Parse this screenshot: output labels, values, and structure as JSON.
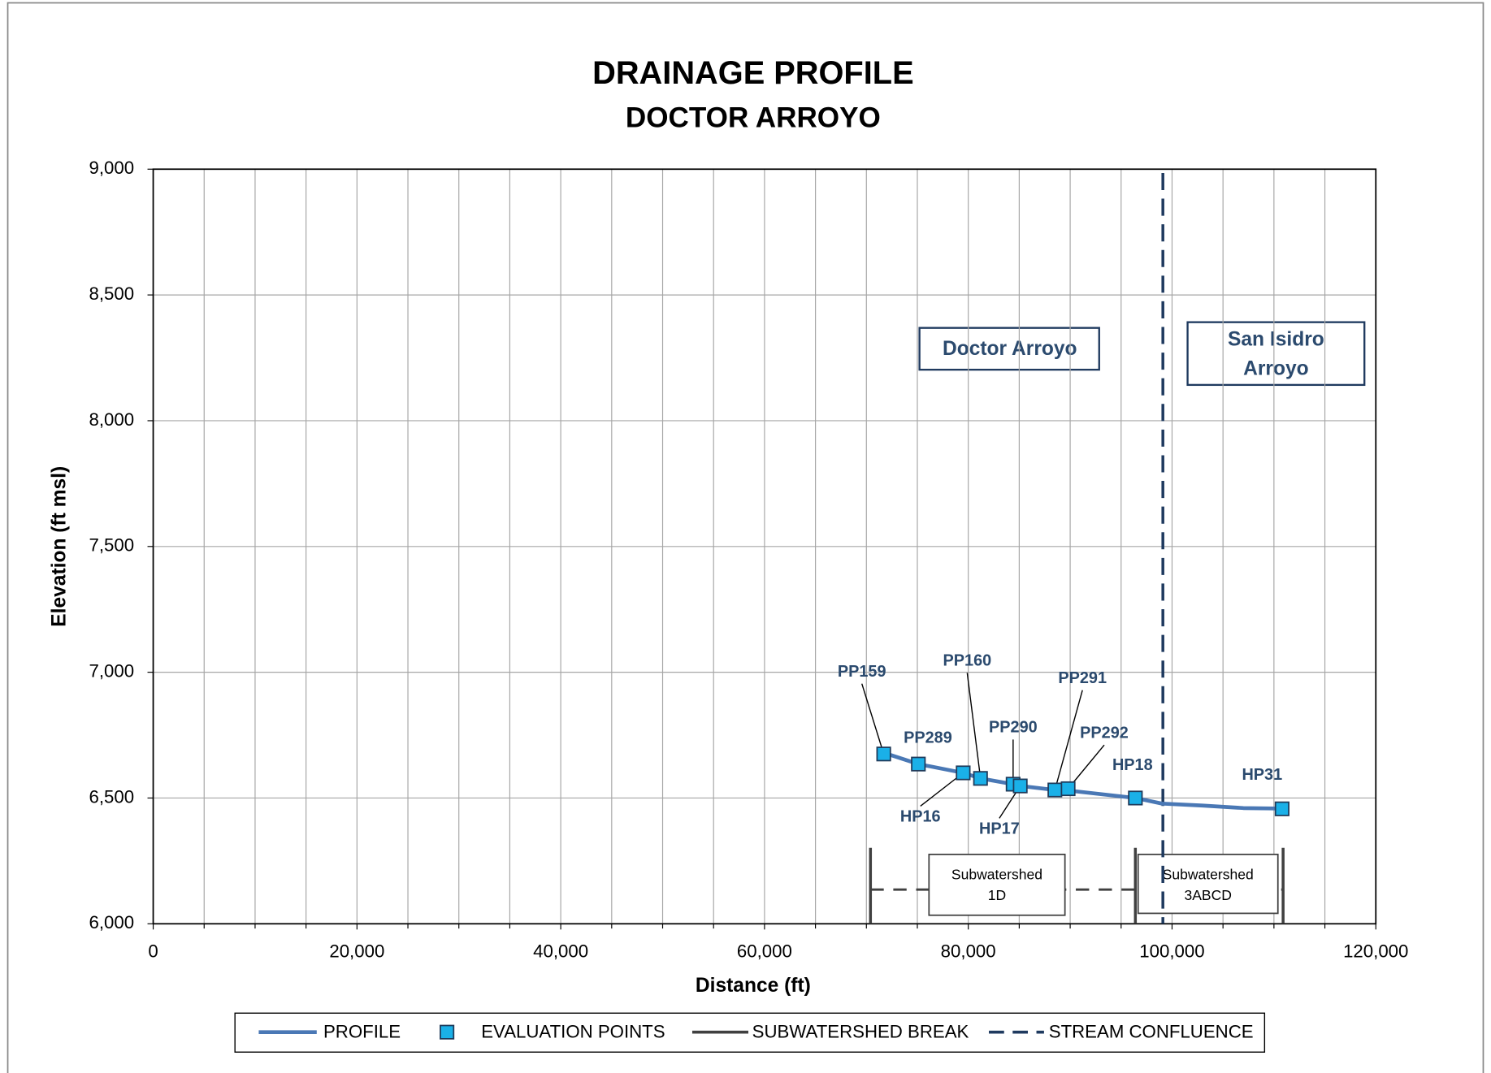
{
  "chart_data": {
    "type": "line",
    "title": "DRAINAGE PROFILE",
    "subtitle": "DOCTOR ARROYO",
    "x_label": "Distance (ft)",
    "y_label": "Elevation (ft msl)",
    "xlim": [
      0,
      120000
    ],
    "ylim": [
      6000,
      9000
    ],
    "xticks": [
      0,
      {
        "value": 20000,
        "label": "20,000"
      },
      {
        "value": 40000,
        "label": "40,000"
      },
      {
        "value": 60000,
        "label": "60,000"
      },
      {
        "value": 80000,
        "label": "80,000"
      },
      {
        "value": 100000,
        "label": "100,000"
      },
      {
        "value": 120000,
        "label": "120,000"
      }
    ],
    "yticks": [
      {
        "value": 6000,
        "label": "6,000"
      },
      {
        "value": 6500,
        "label": "6,500"
      },
      {
        "value": 7000,
        "label": "7,000"
      },
      {
        "value": 7500,
        "label": "7,500"
      },
      {
        "value": 8000,
        "label": "8,000"
      },
      {
        "value": 8500,
        "label": "8,500"
      },
      {
        "value": 9000,
        "label": "9,000"
      }
    ],
    "grid": true,
    "series": [
      {
        "name": "PROFILE",
        "color": "#4a78b5",
        "x": [
          71700,
          75100,
          79500,
          81200,
          84400,
          85100,
          88500,
          89800,
          96400,
          99000,
          103000,
          107000,
          110800
        ],
        "values": [
          6680,
          6635,
          6600,
          6578,
          6555,
          6548,
          6532,
          6530,
          6500,
          6478,
          6470,
          6460,
          6458
        ]
      },
      {
        "name": "EVALUATION POINTS",
        "color": "#1ab0e8",
        "x": [
          71700,
          75100,
          79500,
          81200,
          84400,
          85100,
          88500,
          89800,
          96400,
          110800
        ],
        "values": [
          6675,
          6635,
          6600,
          6578,
          6555,
          6548,
          6532,
          6537,
          6500,
          6457
        ],
        "labels": [
          "PP159",
          "PP289",
          "HP16",
          "PP160",
          "PP290",
          "HP17",
          "PP291",
          "PP292",
          "HP18",
          "HP31"
        ]
      },
      {
        "name": "SUBWATERSHED BREAK",
        "color": "#404040",
        "x": [
          70400,
          96400,
          110900
        ]
      },
      {
        "name": "STREAM CONFLUENCE",
        "color": "#1f3a5f",
        "x": [
          99100
        ]
      }
    ],
    "annotations": [
      "Doctor Arroyo",
      "San Isidro",
      "Arroyo",
      "Subwatershed",
      "1D",
      "Subwatershed",
      "3ABCD"
    ]
  }
}
